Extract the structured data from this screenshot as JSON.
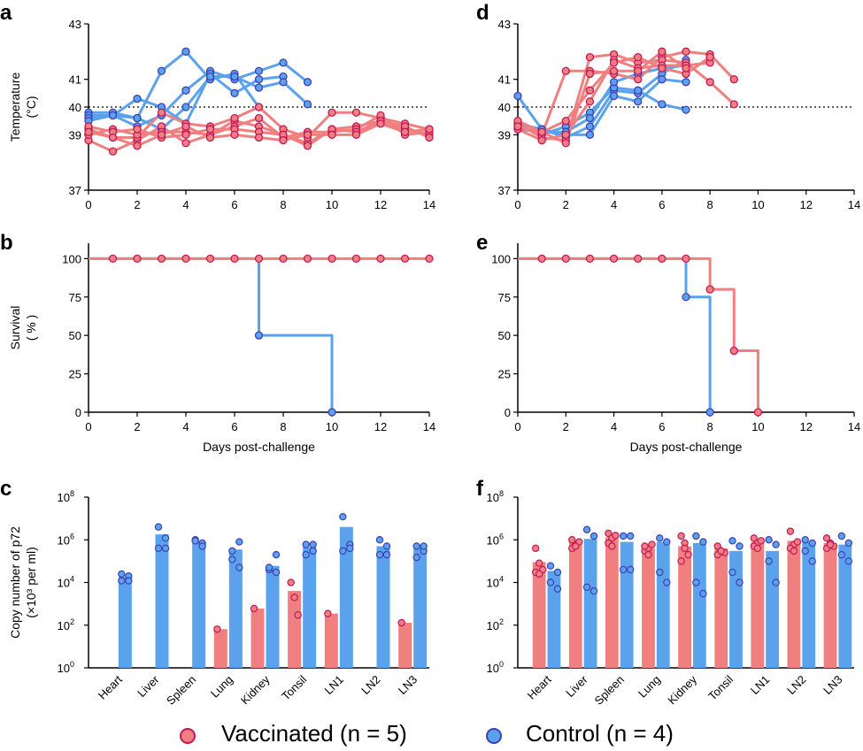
{
  "colors": {
    "vaccinated": "#F08080",
    "vaccinated_edge": "#C2185B",
    "control": "#5AA3EC",
    "control_edge": "#3F3FB8"
  },
  "legend": {
    "vaccinated": "Vaccinated (n = 5)",
    "control": "Control (n = 4)"
  },
  "chart_data": [
    {
      "panel": "a",
      "type": "line",
      "ylabel": "Temperature",
      "ylabel2": "(°C)",
      "xlim": [
        0,
        14
      ],
      "xticks": [
        0,
        2,
        4,
        6,
        8,
        10,
        12,
        14
      ],
      "ylim": [
        37,
        43
      ],
      "yticks": [
        37,
        39,
        40,
        41,
        43
      ],
      "threshold": 40,
      "series": [
        {
          "group": "control",
          "x": [
            0,
            1,
            2,
            3,
            4,
            5,
            6,
            7
          ],
          "y": [
            39.8,
            39.8,
            39.6,
            41.3,
            42.0,
            41.0,
            41.2,
            40.0
          ]
        },
        {
          "group": "control",
          "x": [
            0,
            1,
            2,
            3,
            4,
            5,
            6,
            7,
            8,
            9
          ],
          "y": [
            39.7,
            39.7,
            39.3,
            39.7,
            40.6,
            41.3,
            41.0,
            41.3,
            41.6,
            40.9
          ]
        },
        {
          "group": "control",
          "x": [
            0,
            1,
            2,
            3,
            4,
            5,
            6,
            7,
            8
          ],
          "y": [
            39.6,
            39.7,
            40.3,
            40.0,
            39.4,
            41.2,
            40.5,
            41.0,
            41.1
          ]
        },
        {
          "group": "control",
          "x": [
            0,
            1,
            2,
            3,
            4,
            5,
            6,
            7,
            8,
            9
          ],
          "y": [
            39.5,
            39.7,
            39.6,
            39.2,
            40.0,
            41.1,
            41.1,
            40.7,
            40.9,
            40.1
          ]
        },
        {
          "group": "vaccinated",
          "x": [
            0,
            1,
            2,
            3,
            4,
            5,
            6,
            7,
            8,
            9,
            10,
            11,
            12,
            13,
            14
          ],
          "y": [
            38.8,
            38.4,
            38.8,
            39.3,
            38.7,
            39.0,
            39.5,
            39.3,
            39.0,
            38.7,
            39.2,
            39.3,
            39.5,
            39.2,
            39.0
          ]
        },
        {
          "group": "vaccinated",
          "x": [
            0,
            1,
            2,
            3,
            4,
            5,
            6,
            7,
            8,
            9,
            10,
            11,
            12,
            13,
            14
          ],
          "y": [
            39.2,
            38.9,
            38.9,
            39.8,
            39.4,
            39.3,
            39.6,
            40.0,
            39.2,
            38.9,
            39.8,
            39.8,
            39.6,
            39.4,
            39.2
          ]
        },
        {
          "group": "vaccinated",
          "x": [
            0,
            1,
            2,
            3,
            4,
            5,
            6,
            7,
            8,
            9,
            10,
            11,
            12,
            13,
            14
          ],
          "y": [
            39.0,
            39.2,
            39.0,
            39.1,
            39.1,
            39.0,
            39.3,
            39.6,
            38.9,
            39.1,
            39.1,
            39.2,
            39.7,
            39.0,
            39.1
          ]
        },
        {
          "group": "vaccinated",
          "x": [
            0,
            1,
            2,
            3,
            4,
            5,
            6,
            7,
            8,
            9,
            10,
            11,
            12,
            13,
            14
          ],
          "y": [
            39.3,
            39.1,
            39.2,
            38.9,
            39.0,
            39.2,
            39.2,
            39.1,
            39.0,
            38.6,
            39.2,
            39.1,
            39.5,
            39.3,
            38.9
          ]
        },
        {
          "group": "vaccinated",
          "x": [
            0,
            1,
            2,
            3,
            4,
            5,
            6,
            7,
            8,
            9,
            10,
            11,
            12,
            13,
            14
          ],
          "y": [
            39.1,
            38.9,
            38.6,
            39.0,
            39.3,
            38.9,
            39.0,
            38.9,
            38.8,
            39.0,
            39.0,
            39.0,
            39.4,
            39.1,
            39.2
          ]
        }
      ]
    },
    {
      "panel": "b",
      "type": "line",
      "step": true,
      "ylabel": "Survival",
      "ylabel2": "( % )",
      "xlim": [
        0,
        14
      ],
      "xticks": [
        0,
        2,
        4,
        6,
        8,
        10,
        12,
        14
      ],
      "ylim": [
        0,
        110
      ],
      "yticks": [
        0,
        25,
        50,
        75,
        100
      ],
      "series": [
        {
          "group": "control",
          "x": [
            0,
            7,
            10
          ],
          "y": [
            100,
            50,
            0
          ],
          "markers_x": [
            7,
            10
          ],
          "markers_y": [
            50,
            0
          ]
        },
        {
          "group": "vaccinated",
          "x": [
            0,
            14
          ],
          "y": [
            100,
            100
          ],
          "markers_x": [
            1,
            2,
            3,
            4,
            5,
            6,
            7,
            8,
            9,
            10,
            11,
            12,
            13,
            14
          ],
          "markers_y": [
            100,
            100,
            100,
            100,
            100,
            100,
            100,
            100,
            100,
            100,
            100,
            100,
            100,
            100
          ]
        }
      ],
      "xlabel": "Days post-challenge"
    },
    {
      "panel": "c",
      "type": "bar",
      "log": true,
      "ylabel": "Copy number of p72",
      "ylabel2": "(×10³ per ml)",
      "ylim_exp": [
        0,
        8
      ],
      "yticks_exp": [
        0,
        2,
        4,
        6,
        8
      ],
      "categories": [
        "Heart",
        "Liver",
        "Spleen",
        "Lung",
        "Kidney",
        "Tonsil",
        "LN1",
        "LN2",
        "LN3"
      ],
      "vaccinated": [
        null,
        null,
        null,
        65,
        600,
        4000,
        350,
        null,
        130
      ],
      "vaccinated_points": [
        [],
        [],
        [],
        [
          65
        ],
        [
          600
        ],
        [
          10000,
          2000,
          300
        ],
        [
          350
        ],
        [],
        [
          130
        ]
      ],
      "control": [
        18000,
        1800000,
        900000,
        350000,
        60000,
        450000,
        4000000,
        500000,
        500000
      ],
      "control_points": [
        [
          25000,
          20000,
          12000,
          12000
        ],
        [
          4000000,
          1200000,
          400000,
          400000
        ],
        [
          1000000,
          700000,
          900000,
          500000
        ],
        [
          300000,
          800000,
          120000,
          50000
        ],
        [
          40000,
          200000,
          50000,
          30000
        ],
        [
          600000,
          300000,
          200000,
          600000
        ],
        [
          12000000,
          600000,
          300000,
          400000
        ],
        [
          1000000,
          500000,
          200000,
          200000
        ],
        [
          500000,
          300000,
          150000,
          500000
        ]
      ]
    },
    {
      "panel": "d",
      "type": "line",
      "xlim": [
        0,
        14
      ],
      "xticks": [
        0,
        2,
        4,
        6,
        8,
        10,
        12,
        14
      ],
      "ylim": [
        37,
        43
      ],
      "yticks": [
        37,
        39,
        40,
        41,
        43
      ],
      "threshold": 40,
      "series": [
        {
          "group": "control",
          "x": [
            0,
            1,
            2,
            3,
            4,
            5,
            6,
            7
          ],
          "y": [
            40.4,
            39.2,
            38.9,
            39.3,
            40.6,
            40.5,
            41.2,
            41.7
          ]
        },
        {
          "group": "control",
          "x": [
            0,
            1,
            2,
            3,
            4,
            5,
            6,
            7
          ],
          "y": [
            39.4,
            39.2,
            39.0,
            39.0,
            40.4,
            40.2,
            41.0,
            40.9
          ]
        },
        {
          "group": "control",
          "x": [
            0,
            1,
            2,
            3,
            4,
            5,
            6,
            7
          ],
          "y": [
            39.3,
            39.0,
            39.3,
            39.8,
            40.7,
            40.6,
            40.1,
            39.9
          ]
        },
        {
          "group": "control",
          "x": [
            0,
            1,
            2,
            3,
            4,
            5,
            6,
            7
          ],
          "y": [
            39.2,
            39.1,
            39.1,
            39.6,
            40.9,
            41.2,
            41.4,
            41.5
          ]
        },
        {
          "group": "vaccinated",
          "x": [
            0,
            1,
            2,
            3,
            4,
            5,
            6,
            7,
            8,
            9
          ],
          "y": [
            39.3,
            39.0,
            41.3,
            41.3,
            41.2,
            41.0,
            41.8,
            42.0,
            41.9,
            41.0
          ]
        },
        {
          "group": "vaccinated",
          "x": [
            0,
            1,
            2,
            3,
            4,
            5,
            6,
            7,
            8,
            9
          ],
          "y": [
            39.4,
            38.9,
            38.8,
            41.8,
            41.9,
            41.6,
            41.7,
            41.6,
            40.9,
            40.1
          ]
        },
        {
          "group": "vaccinated",
          "x": [
            0,
            1,
            2,
            3,
            4,
            5,
            6,
            7,
            8
          ],
          "y": [
            39.2,
            38.8,
            39.0,
            40.2,
            41.7,
            41.4,
            41.5,
            41.5,
            41.6
          ]
        },
        {
          "group": "vaccinated",
          "x": [
            0,
            1,
            2,
            3,
            4,
            5,
            6,
            7,
            8
          ],
          "y": [
            39.5,
            39.1,
            39.5,
            40.6,
            41.6,
            41.8,
            41.4,
            41.2,
            41.8
          ]
        },
        {
          "group": "vaccinated",
          "x": [
            0,
            1,
            2,
            3,
            4,
            5,
            6,
            7
          ],
          "y": [
            39.3,
            39.1,
            38.7,
            41.2,
            41.3,
            41.3,
            42.0,
            41.4
          ]
        }
      ]
    },
    {
      "panel": "e",
      "type": "line",
      "step": true,
      "xlim": [
        0,
        14
      ],
      "xticks": [
        0,
        2,
        4,
        6,
        8,
        10,
        12,
        14
      ],
      "ylim": [
        0,
        110
      ],
      "yticks": [
        0,
        25,
        50,
        75,
        100
      ],
      "series": [
        {
          "group": "control",
          "x": [
            0,
            7,
            8
          ],
          "y": [
            100,
            75,
            0
          ],
          "markers_x": [
            7,
            8
          ],
          "markers_y": [
            75,
            0
          ]
        },
        {
          "group": "vaccinated",
          "x": [
            0,
            8,
            9,
            10
          ],
          "y": [
            100,
            80,
            40,
            0
          ],
          "markers_x": [
            1,
            2,
            3,
            4,
            5,
            6,
            7,
            8,
            9,
            10
          ],
          "markers_y": [
            100,
            100,
            100,
            100,
            100,
            100,
            100,
            80,
            40,
            0
          ]
        }
      ],
      "xlabel": "Days post-challenge"
    },
    {
      "panel": "f",
      "type": "bar",
      "log": true,
      "ylim_exp": [
        0,
        8
      ],
      "yticks_exp": [
        0,
        2,
        4,
        6,
        8
      ],
      "categories": [
        "Heart",
        "Liver",
        "Spleen",
        "Lung",
        "Kidney",
        "Tonsil",
        "LN1",
        "LN2",
        "LN3"
      ],
      "vaccinated": [
        90000,
        800000,
        1300000,
        400000,
        500000,
        400000,
        800000,
        900000,
        700000
      ],
      "vaccinated_points": [
        [
          400000,
          80000,
          40000,
          30000,
          25000
        ],
        [
          400000,
          600000,
          800000,
          1000000,
          500000
        ],
        [
          2000000,
          1200000,
          1600000,
          700000,
          500000
        ],
        [
          300000,
          400000,
          600000,
          500000,
          200000
        ],
        [
          1500000,
          700000,
          200000,
          100000,
          400000
        ],
        [
          500000,
          300000,
          250000,
          200000,
          300000
        ],
        [
          1200000,
          700000,
          900000,
          500000,
          400000
        ],
        [
          2500000,
          600000,
          800000,
          400000,
          300000
        ],
        [
          1200000,
          700000,
          500000,
          400000,
          600000
        ]
      ],
      "control": [
        35000,
        1100000,
        800000,
        800000,
        700000,
        300000,
        300000,
        800000,
        600000
      ],
      "control_points": [
        [
          60000,
          30000,
          10000,
          5000
        ],
        [
          3000000,
          1500000,
          6000,
          4000
        ],
        [
          1500000,
          1500000,
          40000,
          40000
        ],
        [
          1200000,
          800000,
          30000,
          10000
        ],
        [
          1500000,
          800000,
          10000,
          3000
        ],
        [
          900000,
          500000,
          30000,
          10000
        ],
        [
          1000000,
          600000,
          100000,
          10000
        ],
        [
          1000000,
          700000,
          300000,
          100000
        ],
        [
          1500000,
          700000,
          200000,
          100000
        ]
      ]
    }
  ]
}
